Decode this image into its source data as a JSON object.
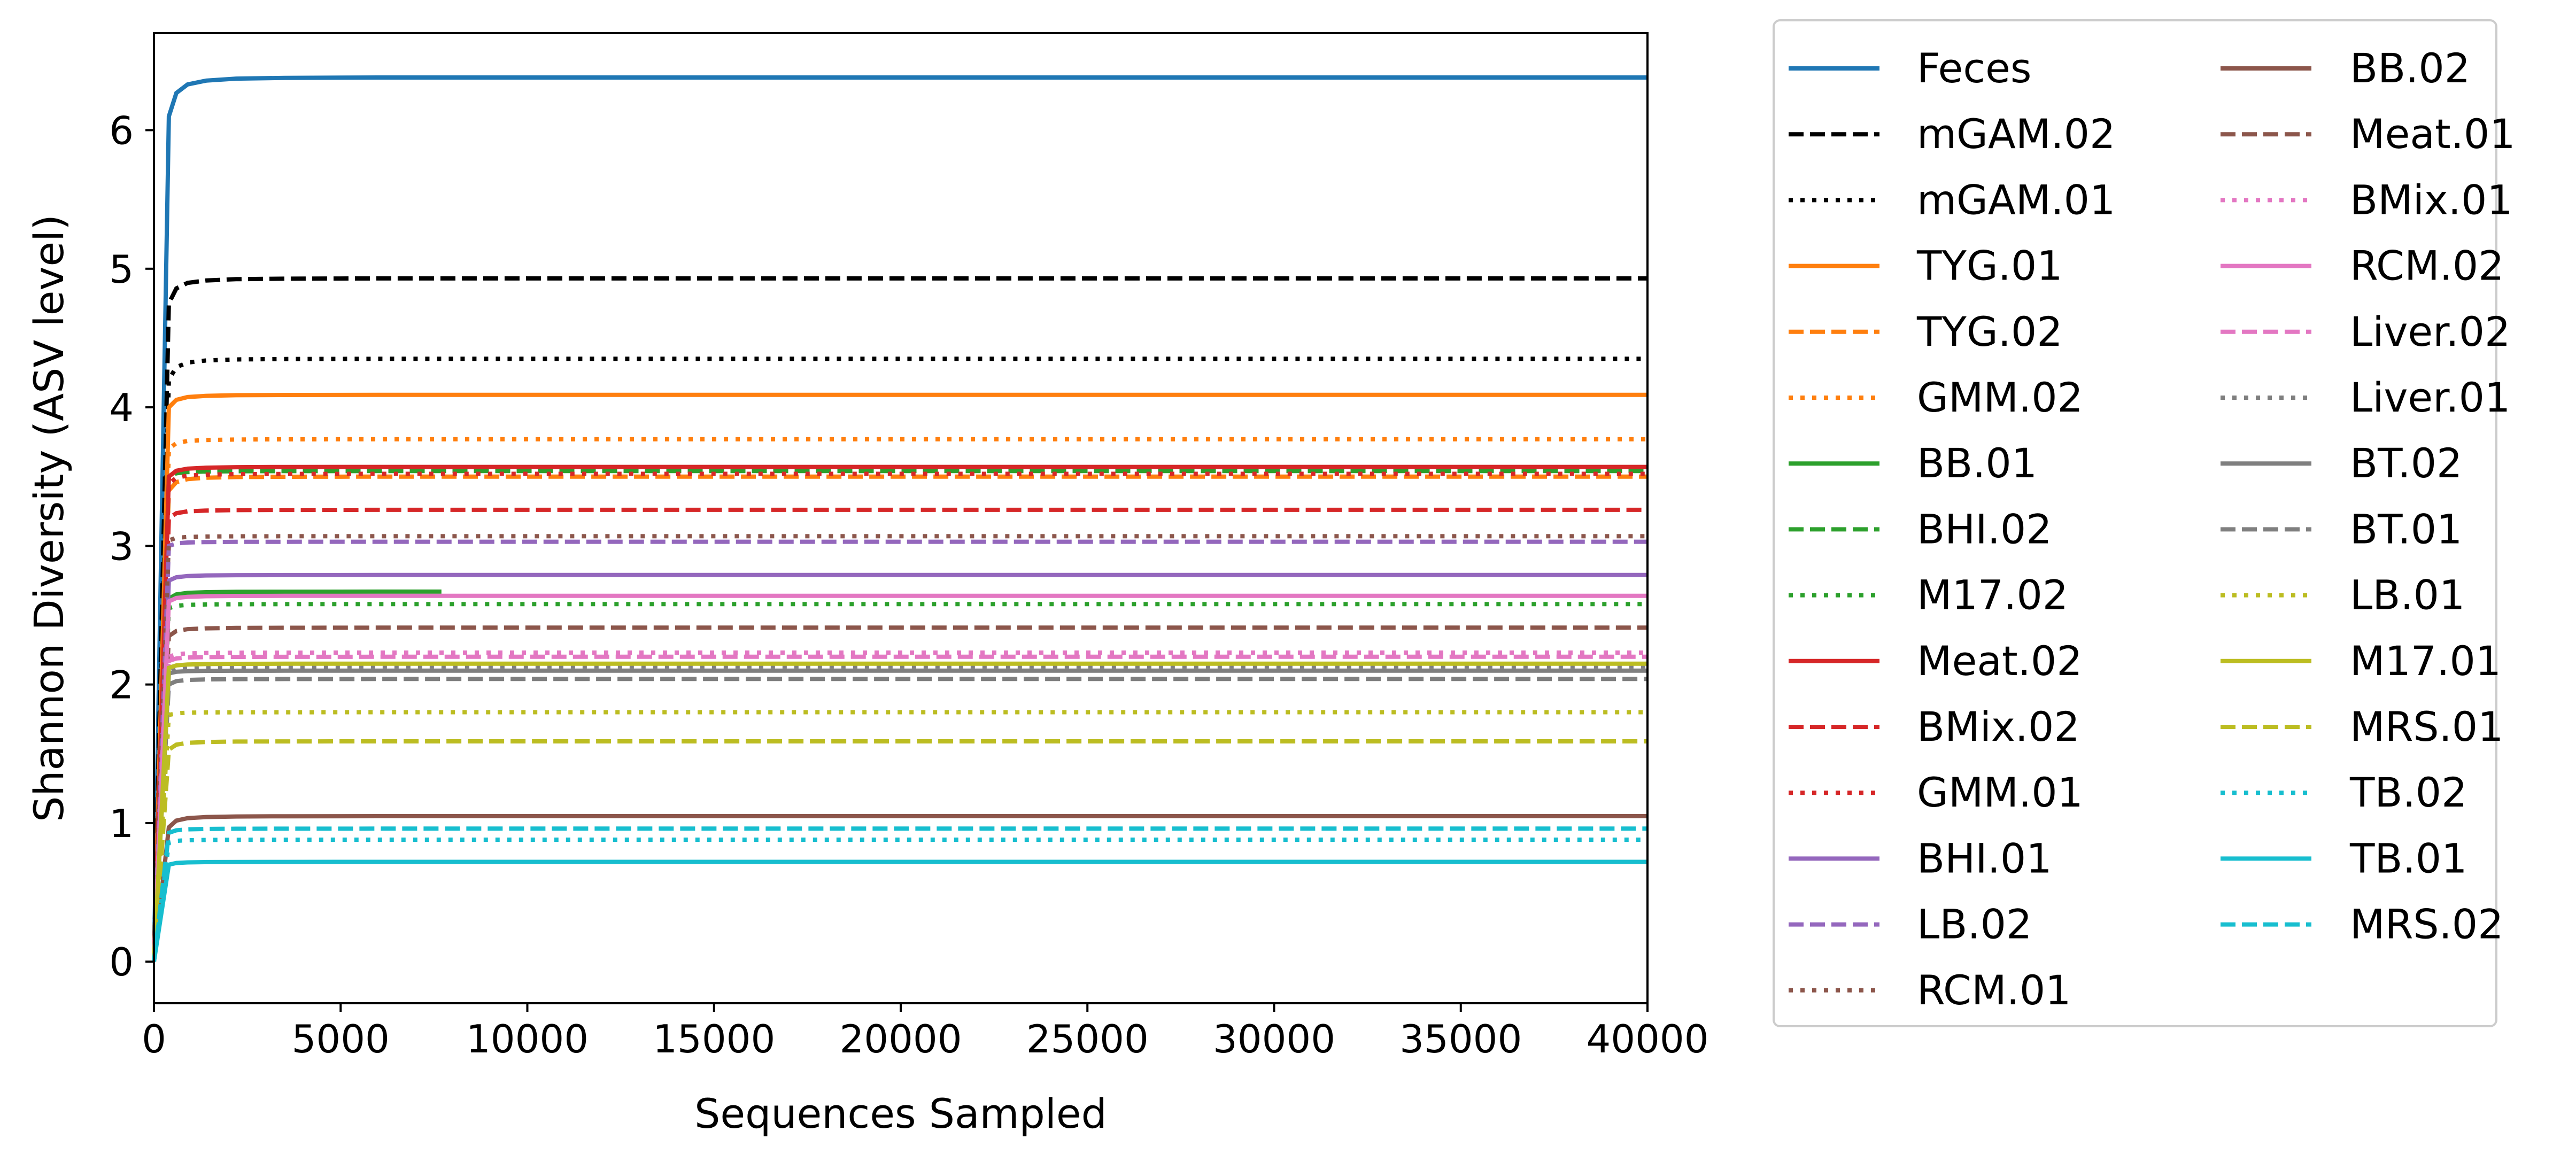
{
  "chart_data": {
    "type": "line",
    "title": "",
    "xlabel": "Sequences Sampled",
    "ylabel": "Shannon Diversity (ASV level)",
    "xlim": [
      0,
      40000
    ],
    "ylim": [
      -0.3,
      6.7
    ],
    "x_ticks": [
      0,
      5000,
      10000,
      15000,
      20000,
      25000,
      30000,
      35000,
      40000
    ],
    "y_ticks": [
      0,
      1,
      2,
      3,
      4,
      5,
      6
    ],
    "grid": false,
    "legend_position": "outside-right",
    "legend_columns": 2,
    "series": [
      {
        "name": "Feces",
        "color": "#1f77b4",
        "style": "solid",
        "y0": 6.1,
        "plateau": 6.38,
        "x_end": 40000
      },
      {
        "name": "mGAM.02",
        "color": "#000000",
        "style": "dashed",
        "y0": 4.75,
        "plateau": 4.93,
        "x_end": 40000
      },
      {
        "name": "mGAM.01",
        "color": "#000000",
        "style": "dotted",
        "y0": 4.2,
        "plateau": 4.35,
        "x_end": 40000
      },
      {
        "name": "TYG.01",
        "color": "#ff7f0e",
        "style": "solid",
        "y0": 4.0,
        "plateau": 4.09,
        "x_end": 40000
      },
      {
        "name": "TYG.02",
        "color": "#ff7f0e",
        "style": "dashed",
        "y0": 3.4,
        "plateau": 3.5,
        "x_end": 40000
      },
      {
        "name": "GMM.02",
        "color": "#ff7f0e",
        "style": "dotted",
        "y0": 3.7,
        "plateau": 3.77,
        "x_end": 40000
      },
      {
        "name": "BB.01",
        "color": "#2ca02c",
        "style": "solid",
        "y0": 2.62,
        "plateau": 2.67,
        "x_end": 7700
      },
      {
        "name": "BHI.02",
        "color": "#2ca02c",
        "style": "dashed",
        "y0": 3.5,
        "plateau": 3.54,
        "x_end": 40000
      },
      {
        "name": "M17.02",
        "color": "#2ca02c",
        "style": "dotted",
        "y0": 2.55,
        "plateau": 2.58,
        "x_end": 40000
      },
      {
        "name": "Meat.02",
        "color": "#d62728",
        "style": "solid",
        "y0": 3.5,
        "plateau": 3.57,
        "x_end": 40000
      },
      {
        "name": "BMix.02",
        "color": "#d62728",
        "style": "dashed",
        "y0": 3.2,
        "plateau": 3.26,
        "x_end": 40000
      },
      {
        "name": "GMM.01",
        "color": "#d62728",
        "style": "dotted",
        "y0": 3.45,
        "plateau": 3.52,
        "x_end": 40000
      },
      {
        "name": "BHI.01",
        "color": "#9467bd",
        "style": "solid",
        "y0": 2.75,
        "plateau": 2.79,
        "x_end": 40000
      },
      {
        "name": "LB.02",
        "color": "#9467bd",
        "style": "dashed",
        "y0": 3.0,
        "plateau": 3.03,
        "x_end": 40000
      },
      {
        "name": "RCM.01",
        "color": "#8c564b",
        "style": "dotted",
        "y0": 3.04,
        "plateau": 3.07,
        "x_end": 40000
      },
      {
        "name": "BB.02",
        "color": "#8c564b",
        "style": "solid",
        "y0": 0.97,
        "plateau": 1.05,
        "x_end": 40000
      },
      {
        "name": "Meat.01",
        "color": "#8c564b",
        "style": "dashed",
        "y0": 2.35,
        "plateau": 2.41,
        "x_end": 40000
      },
      {
        "name": "BMix.01",
        "color": "#e377c2",
        "style": "dotted",
        "y0": 2.2,
        "plateau": 2.23,
        "x_end": 40000
      },
      {
        "name": "RCM.02",
        "color": "#e377c2",
        "style": "solid",
        "y0": 2.6,
        "plateau": 2.64,
        "x_end": 40000
      },
      {
        "name": "Liver.02",
        "color": "#e377c2",
        "style": "dashed",
        "y0": 2.17,
        "plateau": 2.2,
        "x_end": 40000
      },
      {
        "name": "Liver.01",
        "color": "#7f7f7f",
        "style": "dotted",
        "y0": 2.1,
        "plateau": 2.13,
        "x_end": 40000
      },
      {
        "name": "BT.02",
        "color": "#7f7f7f",
        "style": "solid",
        "y0": 2.08,
        "plateau": 2.1,
        "x_end": 40000
      },
      {
        "name": "BT.01",
        "color": "#7f7f7f",
        "style": "dashed",
        "y0": 2.0,
        "plateau": 2.04,
        "x_end": 40000
      },
      {
        "name": "LB.01",
        "color": "#bcbd22",
        "style": "dotted",
        "y0": 1.78,
        "plateau": 1.8,
        "x_end": 40000
      },
      {
        "name": "M17.01",
        "color": "#bcbd22",
        "style": "solid",
        "y0": 2.12,
        "plateau": 2.15,
        "x_end": 40000
      },
      {
        "name": "MRS.01",
        "color": "#bcbd22",
        "style": "dashed",
        "y0": 1.53,
        "plateau": 1.59,
        "x_end": 40000
      },
      {
        "name": "TB.02",
        "color": "#17becf",
        "style": "dotted",
        "y0": 0.86,
        "plateau": 0.88,
        "x_end": 40000
      },
      {
        "name": "TB.01",
        "color": "#17becf",
        "style": "solid",
        "y0": 0.7,
        "plateau": 0.72,
        "x_end": 40000
      },
      {
        "name": "MRS.02",
        "color": "#17becf",
        "style": "dashed",
        "y0": 0.93,
        "plateau": 0.96,
        "x_end": 40000
      }
    ]
  }
}
